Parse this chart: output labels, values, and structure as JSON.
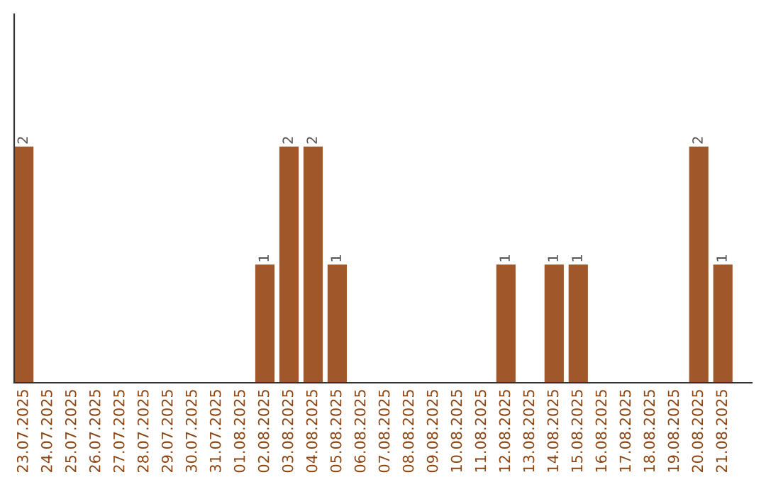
{
  "chart_data": {
    "type": "bar",
    "categories": [
      "23.07.2025",
      "24.07.2025",
      "25.07.2025",
      "26.07.2025",
      "27.07.2025",
      "28.07.2025",
      "29.07.2025",
      "30.07.2025",
      "31.07.2025",
      "01.08.2025",
      "02.08.2025",
      "03.08.2025",
      "04.08.2025",
      "05.08.2025",
      "06.08.2025",
      "07.08.2025",
      "08.08.2025",
      "09.08.2025",
      "10.08.2025",
      "11.08.2025",
      "12.08.2025",
      "13.08.2025",
      "14.08.2025",
      "15.08.2025",
      "16.08.2025",
      "17.08.2025",
      "18.08.2025",
      "19.08.2025",
      "20.08.2025",
      "21.08.2025"
    ],
    "values": [
      2,
      0,
      0,
      0,
      0,
      0,
      0,
      0,
      0,
      0,
      1,
      2,
      2,
      1,
      0,
      0,
      0,
      0,
      0,
      0,
      1,
      0,
      1,
      1,
      0,
      0,
      0,
      0,
      2,
      1
    ],
    "value_labels": [
      "2",
      null,
      null,
      null,
      null,
      null,
      null,
      null,
      null,
      null,
      "1",
      "2",
      "2",
      "1",
      null,
      null,
      null,
      null,
      null,
      null,
      "1",
      null,
      "1",
      "1",
      null,
      null,
      null,
      null,
      "2",
      "1"
    ],
    "color": "#a0582a",
    "tick_labels": "x",
    "grid": false,
    "legend": false
  }
}
